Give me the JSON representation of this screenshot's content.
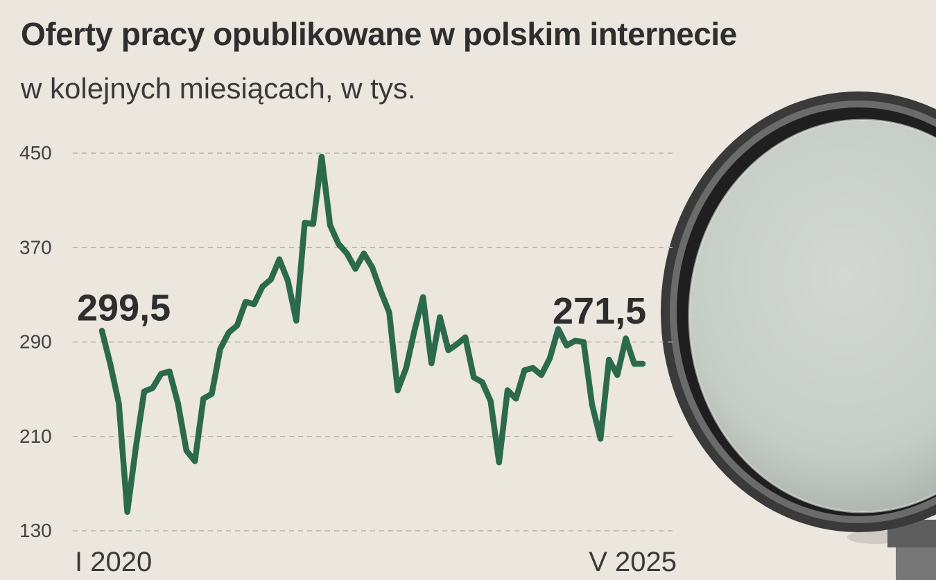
{
  "header": {
    "title": "Oferty  pracy opublikowane w  polskim internecie",
    "subtitle": "w kolejnych miesiącach, w tys."
  },
  "colors": {
    "line": "#2b6a4c",
    "grid": "#b9b2a9",
    "background": "#ebe6de"
  },
  "chart_data": {
    "type": "line",
    "title": "Oferty  pracy opublikowane w  polskim internecie",
    "subtitle": "w kolejnych miesiącach, w tys.",
    "ylim": [
      130,
      450
    ],
    "yticks": [
      "450",
      "370",
      "290",
      "210",
      "130"
    ],
    "grid": "horizontal-dashed",
    "x_labels": {
      "start": "I 2020",
      "end": "V 2025"
    },
    "annotations": [
      {
        "text": "299,5",
        "index": 0
      },
      {
        "text": "271,5",
        "index": 64
      }
    ],
    "series": [
      {
        "values": [
          299.5,
          271,
          238,
          146,
          200,
          248,
          251,
          263,
          265,
          238,
          198,
          189,
          242,
          246,
          284,
          298,
          304,
          324,
          322,
          337,
          343,
          360,
          342,
          308,
          391,
          390,
          447,
          389,
          373,
          365,
          352,
          365,
          353,
          333,
          315,
          249,
          268,
          300,
          328,
          272,
          311,
          283,
          288,
          294,
          260,
          256,
          240,
          188,
          249,
          242,
          266,
          268,
          262,
          276,
          301,
          287,
          291,
          290,
          237,
          208,
          275,
          262,
          293,
          271.5,
          271.5
        ]
      }
    ]
  },
  "footer": {
    "start_label": "I 2020",
    "end_label": "V 2025"
  }
}
